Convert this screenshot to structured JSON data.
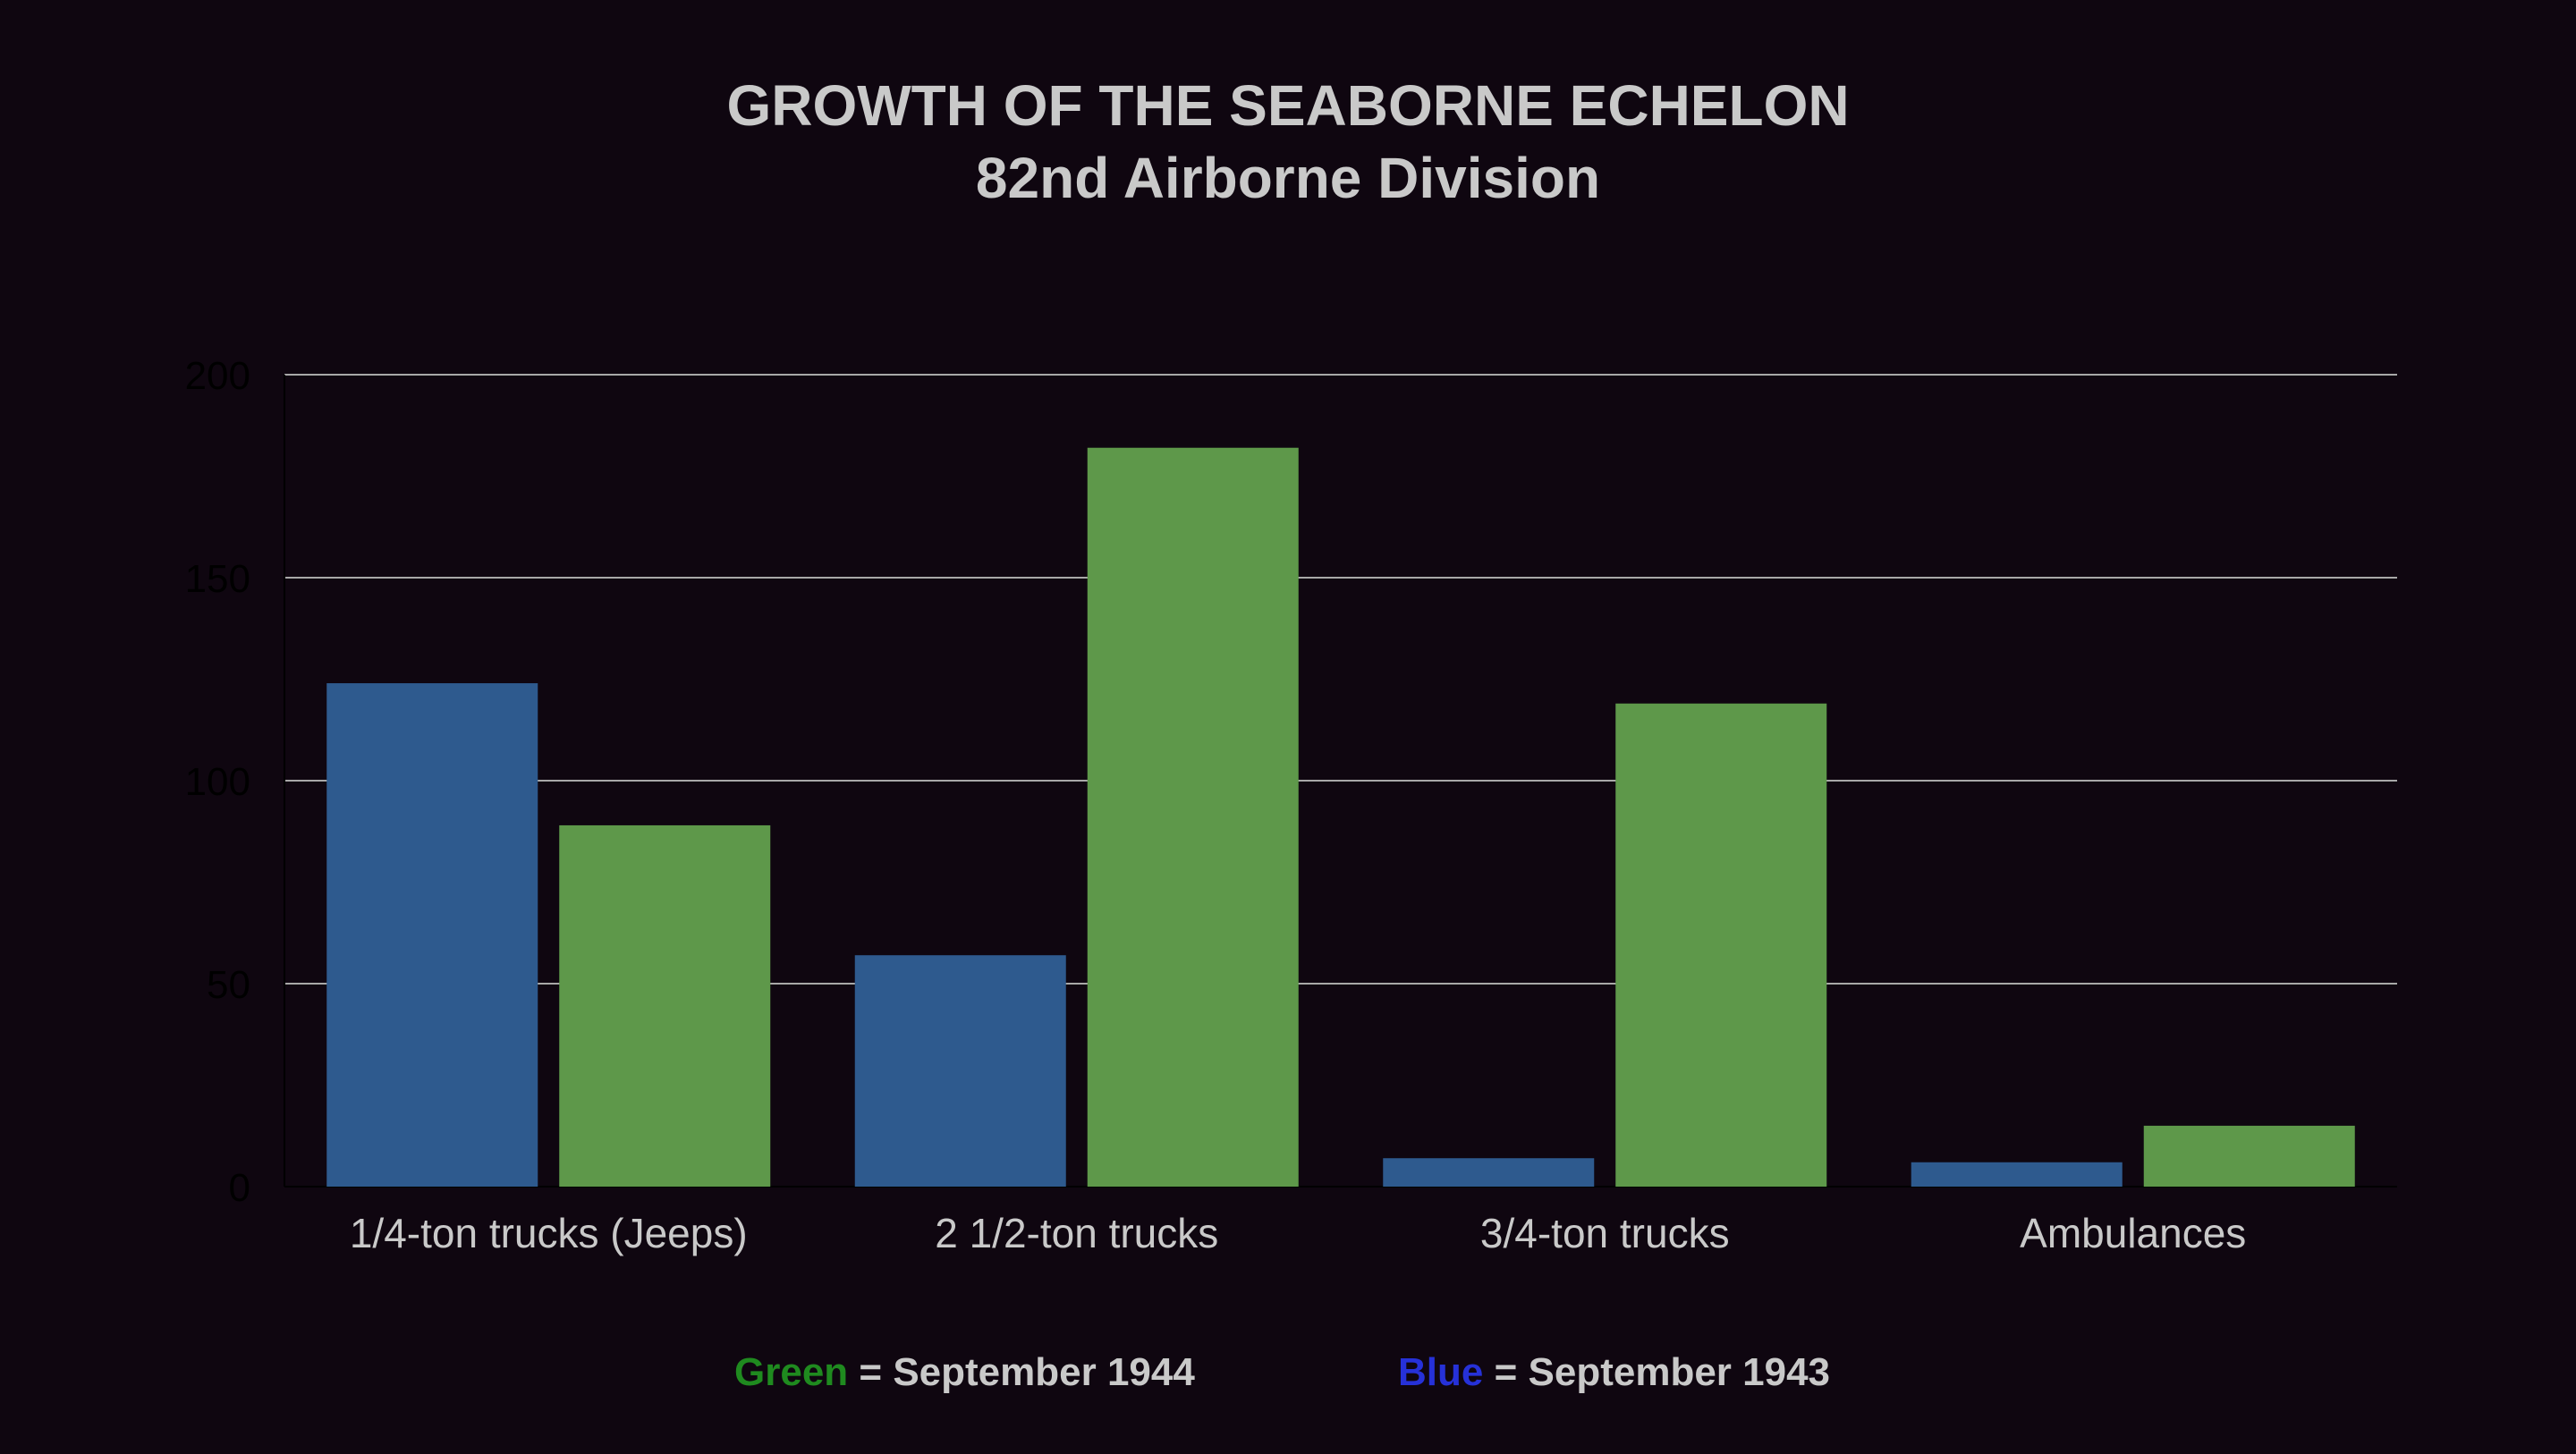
{
  "chart_data": {
    "type": "bar",
    "title": "GROWTH OF THE SEABORNE ECHELON",
    "subtitle": "82nd Airborne Division",
    "categories": [
      "1/4-ton trucks (Jeeps)",
      "2 1/2-ton trucks",
      "3/4-ton trucks",
      "Ambulances"
    ],
    "series": [
      {
        "name": "September 1943",
        "color": "#2e5a8e",
        "values": [
          124,
          57,
          7,
          6
        ]
      },
      {
        "name": "September 1944",
        "color": "#5e984a",
        "values": [
          89,
          182,
          119,
          15
        ]
      }
    ],
    "ylim": [
      0,
      200
    ],
    "yticks": [
      "0",
      "50",
      "100",
      "150",
      "200"
    ],
    "ytick_values": [
      0,
      50,
      100,
      150,
      200
    ],
    "grid": true,
    "legend_placement": "bottom",
    "xlabel": "",
    "ylabel": ""
  },
  "legend": {
    "green": {
      "word": "Green",
      "rest": " = September 1944",
      "color": "#1f8a1f"
    },
    "blue": {
      "word": "Blue",
      "rest": " = September 1943",
      "color": "#2631d8"
    }
  },
  "colors": {
    "background": "#0f0610",
    "text": "#c9c9c9",
    "gridline": "#a8a8a8",
    "ytick_text": "#000000"
  }
}
